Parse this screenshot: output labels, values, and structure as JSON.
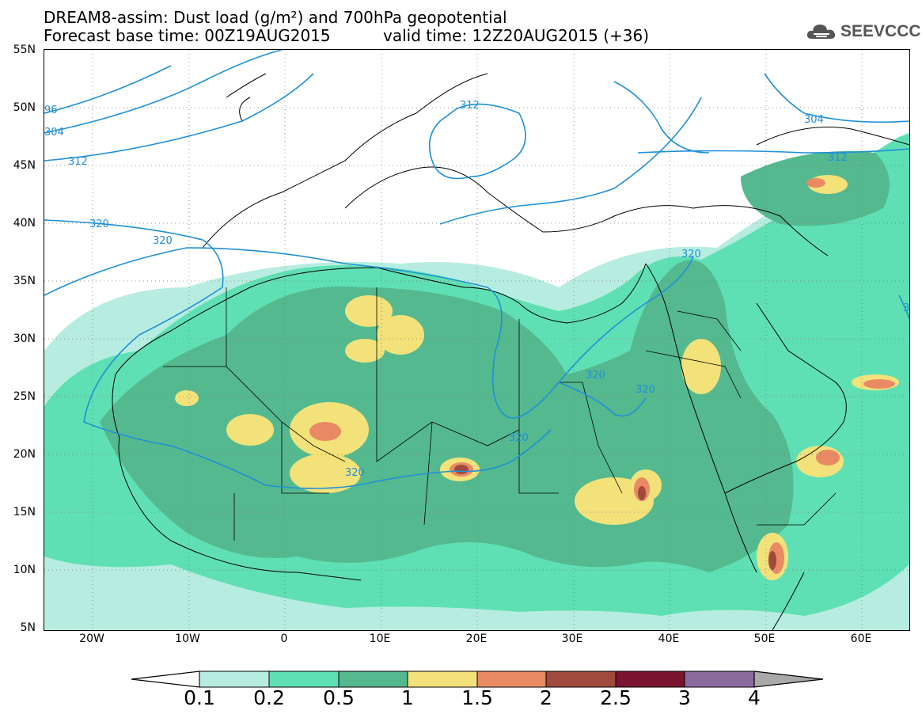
{
  "header": {
    "title_line1": "DREAM8-assim: Dust load (g/m²) and 700hPa geopotential",
    "title_line2_base": "Forecast base time: 00Z19AUG2015",
    "title_line2_valid": "valid time: 12Z20AUG2015 (+36)"
  },
  "logo": {
    "text": "SEEVCCC",
    "icon": "cloud-icon"
  },
  "map": {
    "lat_labels": [
      "55N",
      "50N",
      "45N",
      "40N",
      "35N",
      "30N",
      "25N",
      "20N",
      "15N",
      "10N",
      "5N"
    ],
    "lon_labels": [
      "20W",
      "10W",
      "0",
      "10E",
      "20E",
      "30E",
      "40E",
      "50E",
      "60E"
    ],
    "lat_range": [
      5,
      55
    ],
    "lon_range": [
      -25,
      65
    ],
    "contour_labels": [
      "96",
      "304",
      "312",
      "320",
      "320",
      "312",
      "320",
      "320",
      "320",
      "320",
      "304",
      "312",
      "320",
      "3"
    ],
    "contour_color": "#1e90d8"
  },
  "colorbar": {
    "labels": [
      "0.1",
      "0.2",
      "0.5",
      "1",
      "1.5",
      "2",
      "2.5",
      "3",
      "4"
    ],
    "colors": [
      "#ffffff",
      "#b7ede1",
      "#5fe0b4",
      "#55b98f",
      "#f3e27a",
      "#e98a65",
      "#a04a3d",
      "#7a1430",
      "#8b6a9e",
      "#a9a9a9"
    ]
  }
}
